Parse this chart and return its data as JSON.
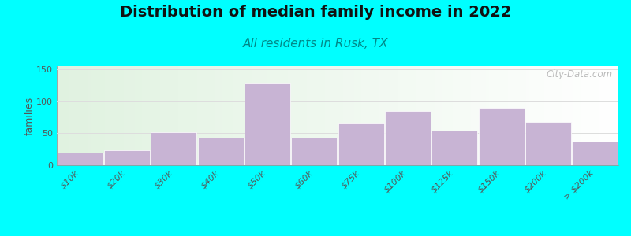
{
  "title": "Distribution of median family income in 2022",
  "subtitle": "All residents in Rusk, TX",
  "ylabel": "families",
  "categories": [
    "$10k",
    "$20k",
    "$30k",
    "$40k",
    "$50k",
    "$60k",
    "$75k",
    "$100k",
    "$125k",
    "$150k",
    "$200k",
    "> $200k"
  ],
  "values": [
    20,
    23,
    52,
    43,
    128,
    43,
    67,
    85,
    54,
    90,
    68,
    37
  ],
  "bar_color": "#c8b4d4",
  "bar_edge_color": "#ffffff",
  "background_color": "#00ffff",
  "title_fontsize": 14,
  "subtitle_fontsize": 11,
  "ylabel_fontsize": 9,
  "tick_fontsize": 8,
  "yticks": [
    0,
    50,
    100,
    150
  ],
  "ylim": [
    0,
    155
  ],
  "watermark": "City-Data.com",
  "title_color": "#111111",
  "subtitle_color": "#008888",
  "grid_color": "#dddddd",
  "tick_color": "#555555"
}
